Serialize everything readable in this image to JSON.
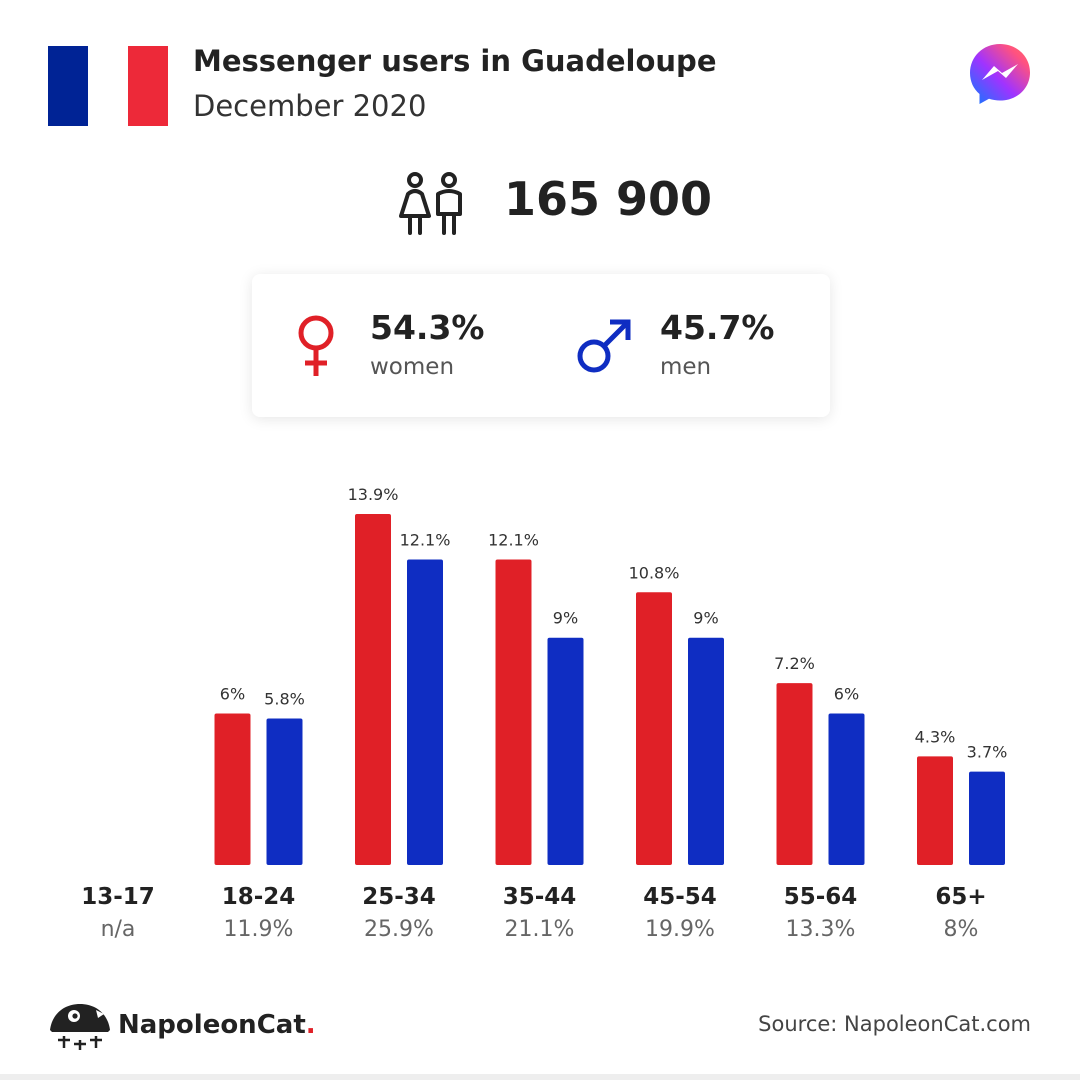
{
  "header": {
    "title": "Messenger users in Guadeloupe",
    "subtitle": "December 2020"
  },
  "flag": {
    "colors": [
      "#002395",
      "#ffffff",
      "#ed2939"
    ]
  },
  "icons": {
    "app": "messenger-icon",
    "users": "users-icon",
    "female": "female-icon",
    "male": "male-icon"
  },
  "summary": {
    "total_users": "165 900"
  },
  "gender": {
    "women": {
      "value": "54.3%",
      "label": "women",
      "color": "#e02027"
    },
    "men": {
      "value": "45.7%",
      "label": "men",
      "color": "#0f2dc2"
    }
  },
  "age_groups": [
    {
      "label": "13-17",
      "share": "n/a"
    },
    {
      "label": "18-24",
      "share": "11.9%"
    },
    {
      "label": "25-34",
      "share": "25.9%"
    },
    {
      "label": "35-44",
      "share": "21.1%"
    },
    {
      "label": "45-54",
      "share": "19.9%"
    },
    {
      "label": "55-64",
      "share": "13.3%"
    },
    {
      "label": "65+",
      "share": "8%"
    }
  ],
  "chart_data": {
    "type": "bar",
    "categories": [
      "13-17",
      "18-24",
      "25-34",
      "35-44",
      "45-54",
      "55-64",
      "65+"
    ],
    "series": [
      {
        "name": "women",
        "color": "#e02027",
        "values": [
          null,
          6,
          13.9,
          12.1,
          10.8,
          7.2,
          4.3
        ],
        "labels": [
          "",
          "6%",
          "13.9%",
          "12.1%",
          "10.8%",
          "7.2%",
          "4.3%"
        ]
      },
      {
        "name": "men",
        "color": "#0f2dc2",
        "values": [
          null,
          5.8,
          12.1,
          9,
          9,
          6,
          3.7
        ],
        "labels": [
          "",
          "5.8%",
          "12.1%",
          "9%",
          "9%",
          "6%",
          "3.7%"
        ]
      }
    ],
    "category_totals": [
      "n/a",
      "11.9%",
      "25.9%",
      "21.1%",
      "19.9%",
      "13.3%",
      "8%"
    ],
    "ylim": [
      0,
      13.9
    ],
    "grid": false,
    "legend": "none"
  },
  "footer": {
    "brand": "NapoleonCat",
    "brand_dot": ".",
    "source": "Source: NapoleonCat.com"
  }
}
